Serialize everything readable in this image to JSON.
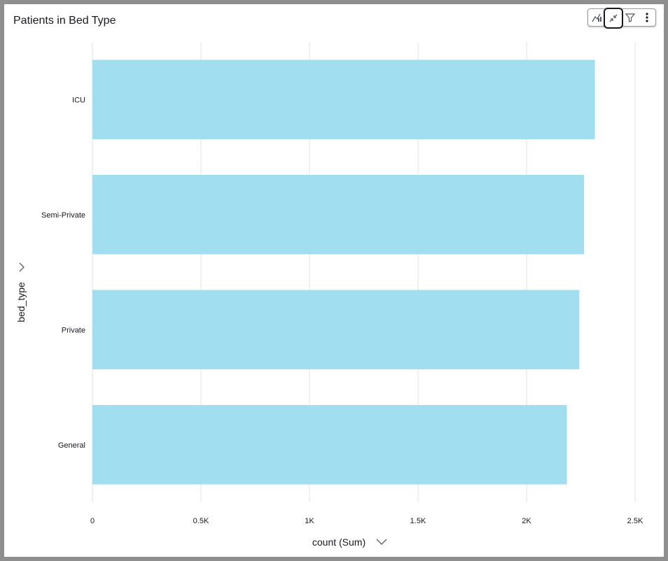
{
  "title": "Patients in Bed Type",
  "toolbar": {
    "icons": [
      "insights-icon",
      "collapse-icon",
      "filter-icon",
      "more-icon"
    ]
  },
  "chart_data": {
    "type": "bar",
    "orientation": "horizontal",
    "categories": [
      "ICU",
      "Semi-Private",
      "Private",
      "General"
    ],
    "values": [
      2315,
      2265,
      2243,
      2186
    ],
    "xlim": [
      0,
      2500
    ],
    "x_ticks": [
      0,
      500,
      1000,
      1500,
      2000,
      2500
    ],
    "x_tick_labels": [
      "0",
      "0.5K",
      "1K",
      "1.5K",
      "2K",
      "2.5K"
    ],
    "xlabel": "count (Sum)",
    "ylabel": "bed_type",
    "bar_color": "#a0def0",
    "grid": true
  }
}
